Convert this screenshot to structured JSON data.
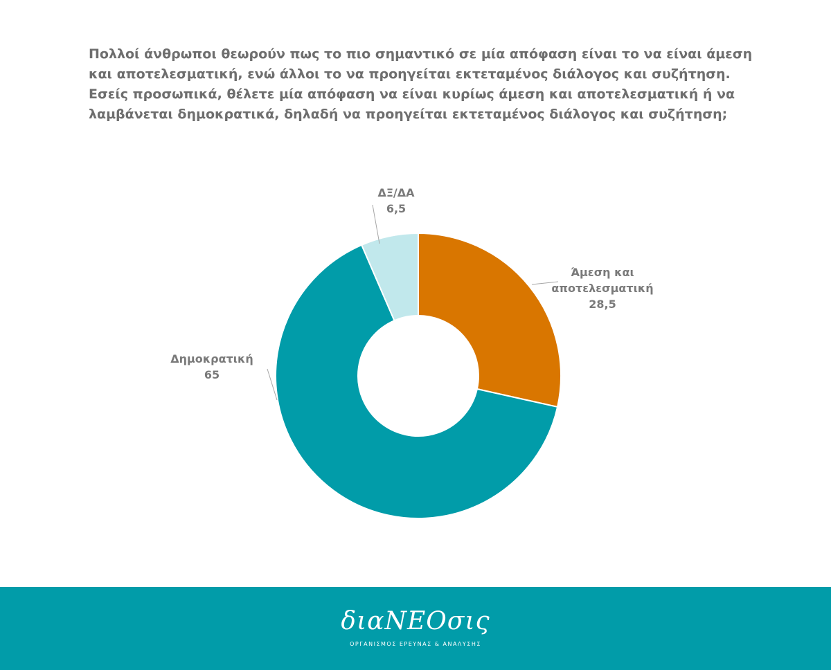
{
  "question": {
    "lines": [
      "Πολλοί άνθρωποι θεωρούν πως το πιο σημαντικό σε μία απόφαση είναι το να είναι άμεση",
      "και αποτελεσματική, ενώ άλλοι το να προηγείται εκτεταμένος διάλογος και συζήτηση.",
      "Εσείς προσωπικά, θέλετε μία απόφαση να είναι κυρίως άμεση και αποτελεσματική ή να",
      "λαμβάνεται δημοκρατικά, δηλαδή να προηγείται εκτεταμένος διάλογος και συζήτηση;"
    ]
  },
  "chart_data": {
    "type": "pie",
    "donut": true,
    "slices": [
      {
        "label": [
          "Άμεση και",
          "αποτελεσματική"
        ],
        "value": 28.5,
        "value_label": "28,5",
        "color": "#d97600"
      },
      {
        "label": [
          "Δημοκρατική"
        ],
        "value": 65,
        "value_label": "65",
        "color": "#019ca9"
      },
      {
        "label": [
          "ΔΞ/ΔΑ"
        ],
        "value": 6.5,
        "value_label": "6,5",
        "color": "#c1e8ec"
      }
    ],
    "start_position": "top",
    "direction": "clockwise"
  },
  "footer": {
    "brand": "διαΝΕΟσις",
    "tagline": "ΟΡΓΑΝΙΣΜΟΣ ΕΡΕΥΝΑΣ & ΑΝΑΛΥΣΗΣ",
    "background_color": "#019ca9"
  }
}
